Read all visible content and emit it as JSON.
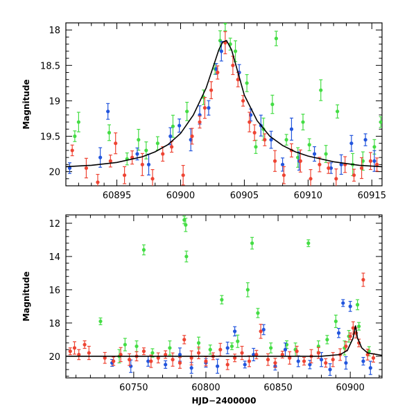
{
  "chart_data": [
    {
      "type": "scatter",
      "panel": "top",
      "title": "",
      "xlabel": "",
      "ylabel": "Magnitude",
      "xlim": [
        60891,
        60915.8
      ],
      "ylim": [
        20.2,
        17.9
      ],
      "y_inverted": true,
      "xticks": [
        60895,
        60900,
        60905,
        60910,
        60915
      ],
      "yticks": [
        18,
        18.5,
        19,
        19.5,
        20
      ],
      "colors": {
        "green": "#44dd44",
        "blue": "#2255dd",
        "red": "#ee4433",
        "model": "#000000"
      },
      "model_curve": {
        "x": [
          60891,
          60893,
          60895,
          60897,
          60898,
          60899,
          60900,
          60901,
          60902,
          60902.5,
          60903,
          60903.3,
          60903.6,
          60904,
          60904.5,
          60905,
          60906,
          60907,
          60908,
          60909,
          60910,
          60912,
          60914,
          60915.8
        ],
        "y": [
          19.93,
          19.91,
          19.87,
          19.79,
          19.72,
          19.62,
          19.46,
          19.2,
          18.82,
          18.55,
          18.28,
          18.17,
          18.15,
          18.28,
          18.6,
          18.92,
          19.28,
          19.5,
          19.63,
          19.72,
          19.78,
          19.86,
          19.91,
          19.93
        ]
      },
      "series": [
        {
          "color": "green",
          "x": [
            60891.7,
            60892,
            60894.4,
            60895.8,
            60896.7,
            60897.3,
            60898.2,
            60899.4,
            60900.5,
            60901.8,
            60902.7,
            60903.1,
            60903.5,
            60903.9,
            60904.3,
            60905.2,
            60905.9,
            60906.5,
            60907.2,
            60907.5,
            60908.3,
            60909.2,
            60909.6,
            60910.1,
            60911,
            60911.4,
            60912.3,
            60913.5,
            60914.3,
            60915.2,
            60915.7
          ],
          "y": [
            19.5,
            19.3,
            19.45,
            19.82,
            19.55,
            19.7,
            19.6,
            19.36,
            19.15,
            18.95,
            18.55,
            18.15,
            17.9,
            18.2,
            18.3,
            18.75,
            19.65,
            19.4,
            19.05,
            18.12,
            19.55,
            19.8,
            19.3,
            19.62,
            18.85,
            19.75,
            19.15,
            19.9,
            19.85,
            19.65,
            19.3
          ]
        },
        {
          "color": "blue",
          "x": [
            60891.3,
            60893.7,
            60894.3,
            60896.6,
            60897.5,
            60899.2,
            60899.9,
            60900.8,
            60901.5,
            60902.2,
            60902.8,
            60903.2,
            60904.6,
            60905.5,
            60906.3,
            60907.1,
            60908,
            60908.7,
            60909.3,
            60910.5,
            60911.8,
            60912.6,
            60913.4,
            60914.5,
            60915.2
          ],
          "y": [
            19.95,
            19.8,
            19.15,
            19.75,
            19.9,
            19.5,
            19.35,
            19.55,
            19.2,
            19.1,
            18.55,
            18.3,
            18.6,
            19.2,
            19.35,
            19.55,
            19.9,
            19.4,
            19.85,
            19.75,
            19.95,
            19.9,
            19.6,
            19.55,
            19.85
          ]
        },
        {
          "color": "red",
          "x": [
            60891.5,
            60892.6,
            60893.5,
            60894.5,
            60894.9,
            60895.6,
            60896.2,
            60897,
            60897.8,
            60898.6,
            60899.3,
            60900.2,
            60900.9,
            60901.5,
            60901.9,
            60902.4,
            60902.9,
            60903.5,
            60904.1,
            60904.5,
            60904.9,
            60905.4,
            60905.8,
            60906.6,
            60907.4,
            60908.1,
            60908.7,
            60909.4,
            60910.2,
            60910.9,
            60911.6,
            60912.2,
            60912.9,
            60913.6,
            60914.2,
            60914.9,
            60915.4
          ],
          "y": [
            19.7,
            19.95,
            20.15,
            19.85,
            19.6,
            20.05,
            19.8,
            19.9,
            20.1,
            19.75,
            19.65,
            20.05,
            19.5,
            19.3,
            19.1,
            18.85,
            18.6,
            18.18,
            18.5,
            18.7,
            19,
            19.3,
            19.45,
            19.55,
            19.85,
            20.05,
            19.7,
            19.85,
            20.1,
            19.9,
            19.95,
            20.1,
            19.9,
            20.05,
            19.95,
            19.85,
            19.9
          ]
        }
      ]
    },
    {
      "type": "scatter",
      "panel": "bottom",
      "title": "",
      "xlabel": "HJD−2400000",
      "ylabel": "Magnitude",
      "xlim": [
        60703,
        60922
      ],
      "ylim": [
        21.3,
        11.5
      ],
      "y_inverted": true,
      "xticks": [
        60750,
        60800,
        60850,
        60900
      ],
      "yticks": [
        12,
        14,
        16,
        18,
        20
      ],
      "colors": {
        "green": "#44dd44",
        "blue": "#2255dd",
        "red": "#ee4433",
        "model": "#000000"
      },
      "model_curve": {
        "x": [
          60703,
          60800,
          60880,
          60893,
          60898,
          60902,
          60903.6,
          60905,
          60908,
          60912,
          60922
        ],
        "y": [
          20.0,
          20.0,
          20.0,
          19.9,
          19.65,
          18.9,
          18.15,
          18.9,
          19.5,
          19.8,
          19.95
        ]
      },
      "series": [
        {
          "color": "green",
          "x": [
            60727,
            60744,
            60757,
            60785,
            60786,
            60786.5,
            60811,
            60829,
            60832,
            60836,
            60871,
            60890,
            60905,
            60906,
            60740,
            60752,
            60763,
            60775,
            60795,
            60803,
            60818,
            60822,
            60845,
            60856,
            60862,
            60878,
            60884,
            60896,
            60899,
            60913
          ],
          "y": [
            17.9,
            19.3,
            13.6,
            11.8,
            12.1,
            14.0,
            16.6,
            16.0,
            13.2,
            17.4,
            13.2,
            17.9,
            16.9,
            18.2,
            20.0,
            19.4,
            19.8,
            19.5,
            19.2,
            19.6,
            19.4,
            19.1,
            19.5,
            19.3,
            19.6,
            19.4,
            19.0,
            19.5,
            18.8,
            19.7
          ]
        },
        {
          "color": "blue",
          "x": [
            60735,
            60748,
            60760,
            60772,
            60782,
            60790,
            60800,
            60808,
            60815,
            60820,
            60827,
            60833,
            60840,
            60848,
            60855,
            60864,
            60872,
            60880,
            60886,
            60892,
            60895,
            60897,
            60900,
            60909,
            60914
          ],
          "y": [
            20.4,
            20.6,
            20.3,
            20.5,
            19.9,
            20.7,
            20.4,
            20.6,
            19.5,
            18.5,
            20.5,
            19.9,
            18.4,
            20.6,
            19.6,
            20.3,
            20.5,
            20.2,
            20.8,
            18.6,
            16.8,
            20.4,
            17.0,
            20.3,
            20.7
          ]
        },
        {
          "color": "red",
          "x": [
            60706,
            60709,
            60712,
            60716,
            60719,
            60730,
            60736,
            60741,
            60747,
            60752,
            60757,
            60762,
            60767,
            60772,
            60777,
            60782,
            60785,
            60790,
            60795,
            60800,
            60805,
            60810,
            60815,
            60820,
            60825,
            60830,
            60835,
            60838,
            60843,
            60848,
            60853,
            60858,
            60863,
            60868,
            60873,
            60878,
            60883,
            60888,
            60893,
            60897,
            60900,
            60902,
            60904,
            60906,
            60909,
            60912,
            60916
          ],
          "y": [
            19.7,
            19.5,
            19.9,
            19.3,
            19.8,
            20.1,
            20.3,
            19.9,
            20.2,
            20.0,
            19.7,
            20.3,
            20.1,
            19.9,
            20.2,
            20.4,
            19.0,
            20.1,
            19.8,
            20.3,
            20.0,
            19.6,
            20.5,
            20.1,
            19.8,
            20.3,
            19.9,
            18.5,
            20.2,
            20.4,
            19.9,
            20.1,
            19.7,
            20.3,
            20.0,
            19.8,
            20.4,
            20.2,
            19.9,
            19.4,
            18.8,
            18.3,
            18.6,
            19.2,
            15.4,
            19.9,
            20.1
          ]
        }
      ]
    }
  ]
}
